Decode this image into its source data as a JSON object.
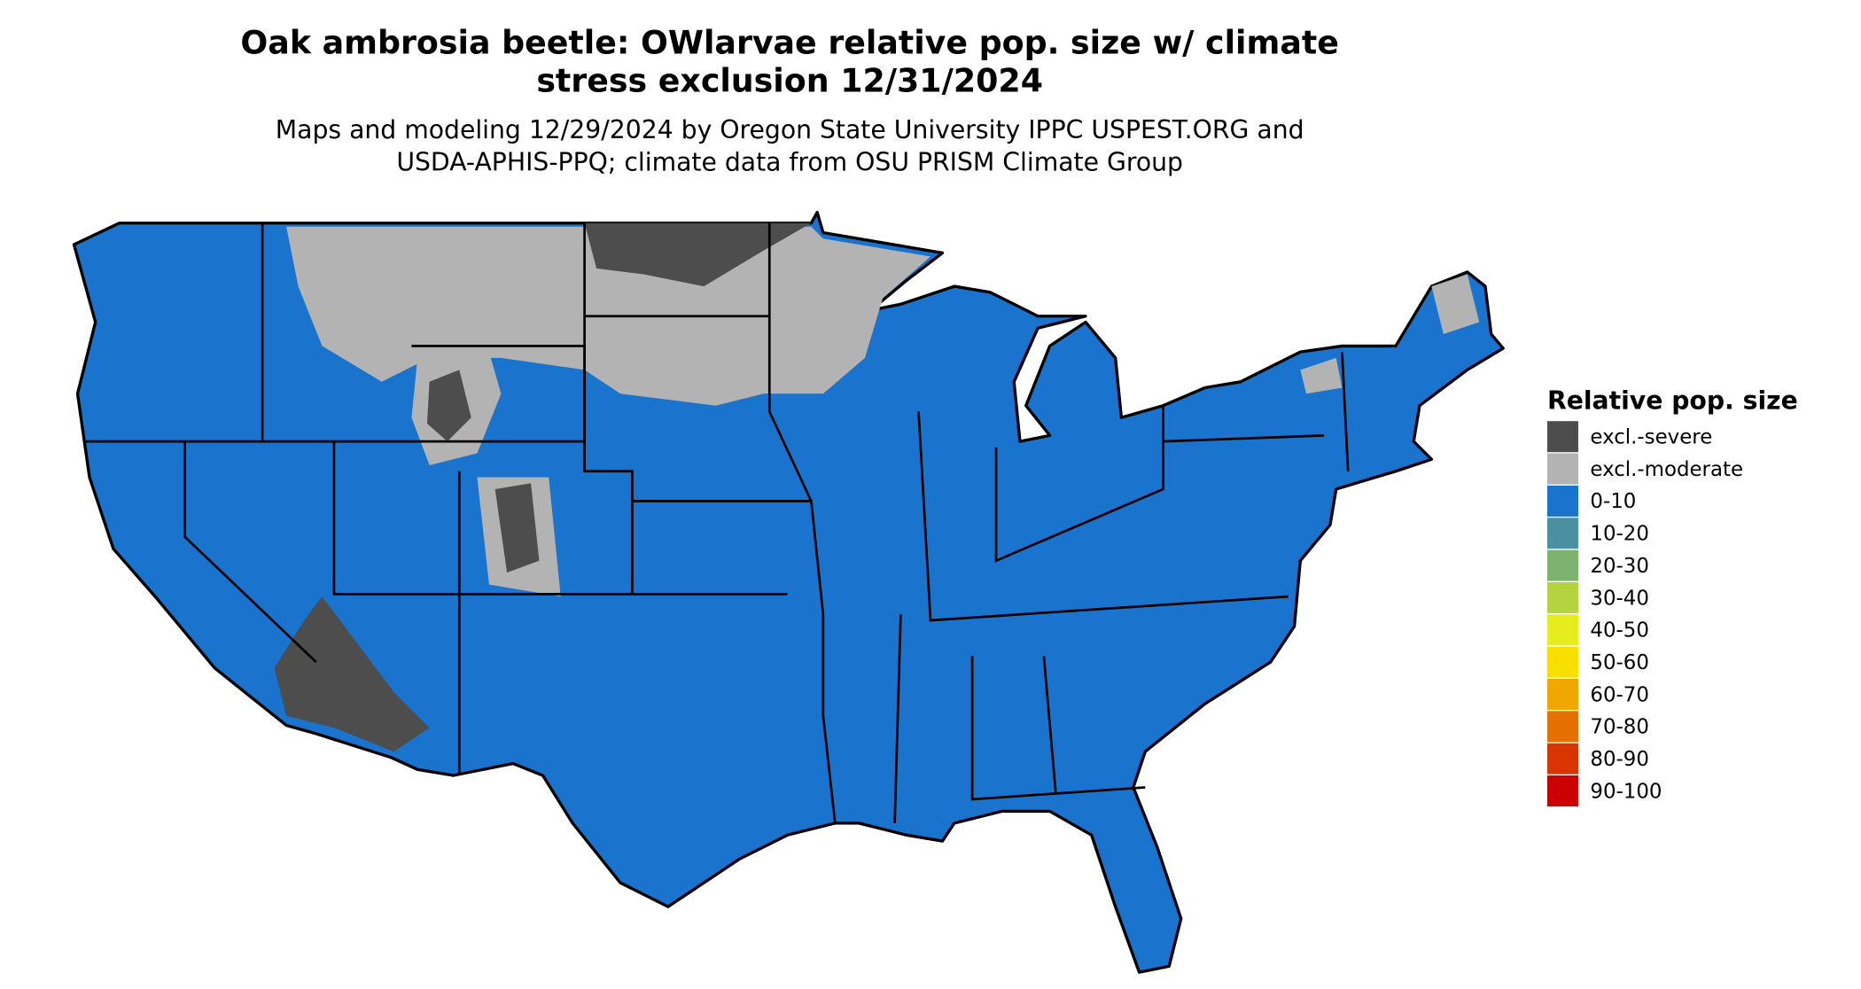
{
  "title": [
    "Oak ambrosia beetle: OWlarvae relative pop. size w/ climate",
    "stress exclusion 12/31/2024"
  ],
  "subtitle": [
    "Maps and modeling 12/29/2024 by Oregon State University IPPC USPEST.ORG and",
    "USDA-APHIS-PPQ; climate data from OSU PRISM Climate Group"
  ],
  "legend": {
    "title": "Relative pop. size",
    "items": [
      {
        "label": "excl.-severe",
        "color": "#4d4d4d"
      },
      {
        "label": "excl.-moderate",
        "color": "#b3b3b3"
      },
      {
        "label": "0-10",
        "color": "#1a73cc"
      },
      {
        "label": "10-20",
        "color": "#4a90a0"
      },
      {
        "label": "20-30",
        "color": "#7cb36e"
      },
      {
        "label": "30-40",
        "color": "#b5d33f"
      },
      {
        "label": "40-50",
        "color": "#e6ed1c"
      },
      {
        "label": "50-60",
        "color": "#f7e000"
      },
      {
        "label": "60-70",
        "color": "#f0a800"
      },
      {
        "label": "70-80",
        "color": "#e57000"
      },
      {
        "label": "80-90",
        "color": "#d93500"
      },
      {
        "label": "90-100",
        "color": "#cc0000"
      }
    ]
  }
}
